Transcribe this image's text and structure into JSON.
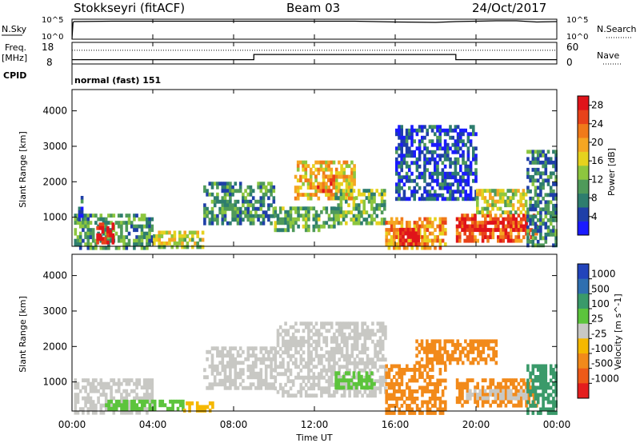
{
  "header": {
    "station": "Stokkseyri (fitACF)",
    "beam": "Beam 03",
    "date": "24/Oct/2017"
  },
  "status_panel": {
    "nsky_label": "N.Sky",
    "nsky_ticks": [
      "10^5",
      "10^0"
    ],
    "nsearch_label": "N.Search",
    "nsearch_ticks": [
      "10^5",
      "10^0"
    ],
    "freq_label": "Freq.",
    "freq_unit": "[MHz]",
    "freq_ticks": [
      "18",
      "8"
    ],
    "nave_label": "Nave",
    "nave_ticks": [
      "60",
      "0"
    ],
    "cpid_label": "CPID",
    "cpid_value": "normal (fast) 151"
  },
  "axes": {
    "xlabel": "Time UT",
    "x_ticks": [
      "00:00",
      "04:00",
      "08:00",
      "12:00",
      "16:00",
      "20:00",
      "00:00"
    ],
    "ylabel": "Slant Range [km]",
    "y_ticks": [
      "1000",
      "2000",
      "3000",
      "4000"
    ]
  },
  "power_scale": {
    "label": "Power [dB]",
    "ticks": [
      "4",
      "8",
      "12",
      "16",
      "20",
      "24",
      "28"
    ],
    "colors": [
      "#1a1aff",
      "#1f3fa8",
      "#2e7d6e",
      "#4f9a5a",
      "#8dc63f",
      "#e6d21e",
      "#f5a623",
      "#f07a1a",
      "#e8421a",
      "#e0141a"
    ]
  },
  "velocity_scale": {
    "label": "Velocity [m s^-1]",
    "ticks": [
      "1000",
      "500",
      "100",
      "25",
      "-25",
      "-100",
      "-500",
      "-1000"
    ],
    "colors": [
      "#2244bb",
      "#2f6fb0",
      "#3a9a6a",
      "#5cc43c",
      "#c8c8c4",
      "#f5b800",
      "#f28a1a",
      "#ee5a18",
      "#e41e1e"
    ]
  },
  "chart_data": [
    {
      "type": "line",
      "title": "N.Sky / N.Search",
      "x_hours": [
        0,
        0.05,
        0.1,
        2,
        4,
        6,
        8,
        10,
        12,
        14,
        16,
        18,
        19,
        20,
        21,
        22,
        23,
        24
      ],
      "series": [
        {
          "name": "N.Sky",
          "values_log10": [
            0,
            4.2,
            4.4,
            4.5,
            4.5,
            4.5,
            4.5,
            4.5,
            4.5,
            4.5,
            4.3,
            4.2,
            4.4,
            4.5,
            4.6,
            4.6,
            4.3,
            4.4
          ]
        }
      ],
      "ylim": [
        0,
        5
      ]
    },
    {
      "type": "line",
      "title": "Freq. / Nave",
      "series": [
        {
          "name": "Freq.",
          "x_hours": [
            0,
            9,
            9,
            19,
            19,
            24
          ],
          "values": [
            10,
            10,
            12.4,
            12.4,
            10,
            10
          ]
        },
        {
          "name": "Nave",
          "x_hours": [
            0,
            24
          ],
          "values": [
            38,
            38
          ]
        }
      ],
      "ylim_freq": [
        8,
        18
      ],
      "ylim_nave": [
        0,
        60
      ]
    },
    {
      "type": "heatmap",
      "title": "Power [dB]",
      "xlabel": "Time UT",
      "ylabel": "Slant Range [km]",
      "xlim_hours": [
        0,
        24
      ],
      "ylim_km": [
        180,
        4600
      ],
      "colorbar_range_db": [
        0,
        30
      ],
      "regions": [
        {
          "t": [
            0.1,
            4.0
          ],
          "r": [
            180,
            1100
          ],
          "value": 10
        },
        {
          "t": [
            0.3,
            0.5
          ],
          "r": [
            900,
            1600
          ],
          "value": 6
        },
        {
          "t": [
            1.2,
            2.0
          ],
          "r": [
            300,
            850
          ],
          "value": 28
        },
        {
          "t": [
            4.0,
            6.5
          ],
          "r": [
            180,
            620
          ],
          "value": 15
        },
        {
          "t": [
            6.5,
            10.0
          ],
          "r": [
            800,
            2000
          ],
          "value": 9
        },
        {
          "t": [
            10.0,
            13.0
          ],
          "r": [
            600,
            1300
          ],
          "value": 11
        },
        {
          "t": [
            11.0,
            14.0
          ],
          "r": [
            1500,
            2600
          ],
          "value": 18
        },
        {
          "t": [
            12.0,
            13.0
          ],
          "r": [
            1700,
            2200
          ],
          "value": 24
        },
        {
          "t": [
            13.0,
            15.5
          ],
          "r": [
            800,
            1800
          ],
          "value": 12
        },
        {
          "t": [
            15.5,
            18.5
          ],
          "r": [
            180,
            1000
          ],
          "value": 20
        },
        {
          "t": [
            16.2,
            17.2
          ],
          "r": [
            250,
            700
          ],
          "value": 29
        },
        {
          "t": [
            16.0,
            20.0
          ],
          "r": [
            1500,
            3600
          ],
          "value": 5
        },
        {
          "t": [
            19.0,
            23.0
          ],
          "r": [
            300,
            1100
          ],
          "value": 24
        },
        {
          "t": [
            19.0,
            22.5
          ],
          "r": [
            600,
            1000
          ],
          "value": 28
        },
        {
          "t": [
            20.0,
            22.5
          ],
          "r": [
            1100,
            1800
          ],
          "value": 15
        },
        {
          "t": [
            22.5,
            24.0
          ],
          "r": [
            180,
            2900
          ],
          "value": 8
        }
      ]
    },
    {
      "type": "heatmap",
      "title": "Velocity [m s^-1]",
      "xlabel": "Time UT",
      "ylabel": "Slant Range [km]",
      "xlim_hours": [
        0,
        24
      ],
      "ylim_km": [
        180,
        4600
      ],
      "regions": [
        {
          "t": [
            0.1,
            4.0
          ],
          "r": [
            180,
            1100
          ],
          "value": 0
        },
        {
          "t": [
            1.5,
            5.5
          ],
          "r": [
            200,
            500
          ],
          "value": 60
        },
        {
          "t": [
            5.5,
            7.0
          ],
          "r": [
            200,
            450
          ],
          "value": -60
        },
        {
          "t": [
            6.5,
            10.0
          ],
          "r": [
            800,
            2000
          ],
          "value": 0
        },
        {
          "t": [
            10.0,
            15.5
          ],
          "r": [
            600,
            2700
          ],
          "value": 0
        },
        {
          "t": [
            13.0,
            15.0
          ],
          "r": [
            800,
            1300
          ],
          "value": 60
        },
        {
          "t": [
            15.5,
            18.5
          ],
          "r": [
            180,
            1500
          ],
          "value": -250
        },
        {
          "t": [
            17.0,
            21.0
          ],
          "r": [
            1500,
            2200
          ],
          "value": -250
        },
        {
          "t": [
            19.0,
            23.0
          ],
          "r": [
            300,
            1100
          ],
          "value": -250
        },
        {
          "t": [
            19.5,
            22.5
          ],
          "r": [
            500,
            800
          ],
          "value": 0
        },
        {
          "t": [
            22.5,
            24.0
          ],
          "r": [
            180,
            1500
          ],
          "value": 300
        }
      ]
    }
  ]
}
